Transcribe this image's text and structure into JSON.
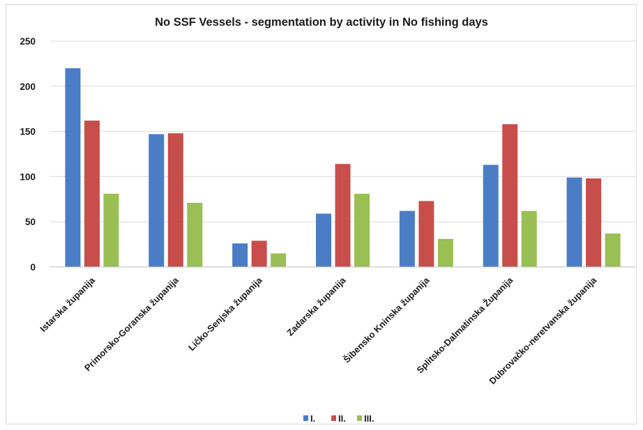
{
  "chart_data": {
    "type": "bar",
    "title": "No SSF Vessels - segmentation by activity in No fishing days",
    "xlabel": "",
    "ylabel": "",
    "ylim": [
      0,
      250
    ],
    "yticks": [
      0,
      50,
      100,
      150,
      200,
      250
    ],
    "grid": true,
    "legend_position": "bottom",
    "categories": [
      "Istarska županija",
      "Primorsko-Goranska županija",
      "Ličko-Senjska županija",
      "Zadarska županija",
      "Šibensko Kninska županija",
      "Splitsko-Dalmatinska Županija",
      "Dubrovačko-neretvanska županija"
    ],
    "series": [
      {
        "name": "I.",
        "color": "#4a7dc6",
        "values": [
          220,
          147,
          26,
          59,
          62,
          113,
          99
        ]
      },
      {
        "name": "II.",
        "color": "#c84e4b",
        "values": [
          162,
          148,
          29,
          114,
          73,
          158,
          98
        ]
      },
      {
        "name": "III.",
        "color": "#99bf55",
        "values": [
          81,
          71,
          15,
          81,
          31,
          62,
          37
        ]
      }
    ]
  }
}
